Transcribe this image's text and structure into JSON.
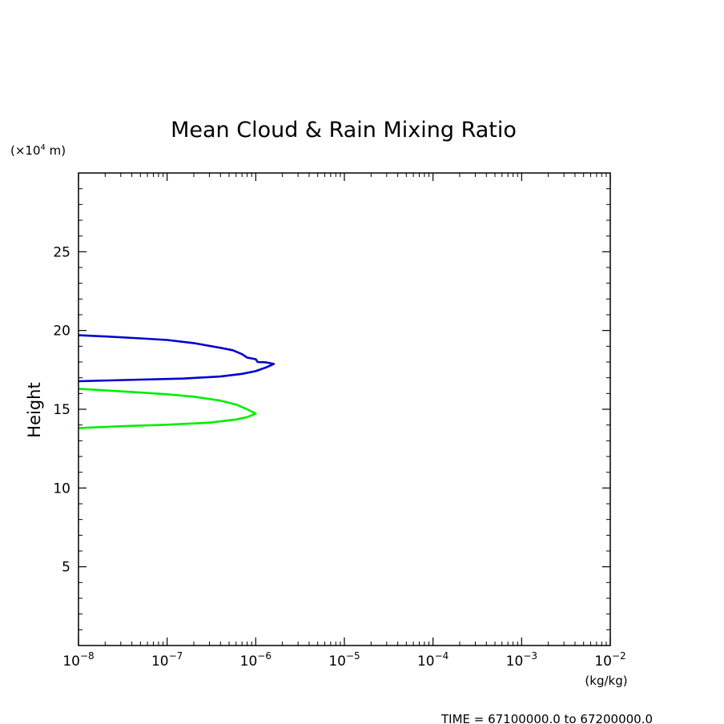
{
  "chart_data": {
    "type": "line",
    "title": "Mean Cloud & Rain Mixing Ratio",
    "ylabel": "Height",
    "yunit_label": {
      "prefix": "(×10",
      "exp": "4",
      "suffix": " m)"
    },
    "xunit_label": "(kg/kg)",
    "time_label": "TIME = 67100000.0 to 67200000.0",
    "x_scale": "log",
    "xlim": [
      1e-08,
      0.01
    ],
    "ylim": [
      0,
      30
    ],
    "x_ticks": [
      {
        "value": 1e-08,
        "base": "10",
        "exp": "−8"
      },
      {
        "value": 1e-07,
        "base": "10",
        "exp": "−7"
      },
      {
        "value": 1e-06,
        "base": "10",
        "exp": "−6"
      },
      {
        "value": 1e-05,
        "base": "10",
        "exp": "−5"
      },
      {
        "value": 0.0001,
        "base": "10",
        "exp": "−4"
      },
      {
        "value": 0.001,
        "base": "10",
        "exp": "−3"
      },
      {
        "value": 0.01,
        "base": "10",
        "exp": "−2"
      }
    ],
    "y_ticks": [
      {
        "value": 5,
        "label": "5"
      },
      {
        "value": 10,
        "label": "10"
      },
      {
        "value": 15,
        "label": "15"
      },
      {
        "value": 20,
        "label": "20"
      },
      {
        "value": 25,
        "label": "25"
      }
    ],
    "series": [
      {
        "color": "#0000d0",
        "points": [
          [
            1e-08,
            19.7
          ],
          [
            2e-08,
            19.62
          ],
          [
            5e-08,
            19.5
          ],
          [
            1e-07,
            19.4
          ],
          [
            2e-07,
            19.2
          ],
          [
            4e-07,
            18.9
          ],
          [
            5.5e-07,
            18.75
          ],
          [
            7e-07,
            18.5
          ],
          [
            8e-07,
            18.28
          ],
          [
            1e-06,
            18.18
          ],
          [
            1.05e-06,
            18.0
          ],
          [
            1.3e-06,
            17.98
          ],
          [
            1.6e-06,
            17.88
          ],
          [
            1.3e-06,
            17.65
          ],
          [
            1e-06,
            17.42
          ],
          [
            7e-07,
            17.25
          ],
          [
            4e-07,
            17.08
          ],
          [
            1.5e-07,
            16.95
          ],
          [
            5e-08,
            16.88
          ],
          [
            1e-08,
            16.78
          ]
        ]
      },
      {
        "color": "#00ee00",
        "points": [
          [
            1e-08,
            16.3
          ],
          [
            4e-08,
            16.1
          ],
          [
            1e-07,
            15.95
          ],
          [
            2e-07,
            15.8
          ],
          [
            4e-07,
            15.55
          ],
          [
            6e-07,
            15.3
          ],
          [
            8e-07,
            15.0
          ],
          [
            1e-06,
            14.72
          ],
          [
            8e-07,
            14.5
          ],
          [
            6e-07,
            14.35
          ],
          [
            3e-07,
            14.15
          ],
          [
            1e-07,
            14.02
          ],
          [
            3e-08,
            13.92
          ],
          [
            1e-08,
            13.8
          ]
        ]
      }
    ]
  }
}
